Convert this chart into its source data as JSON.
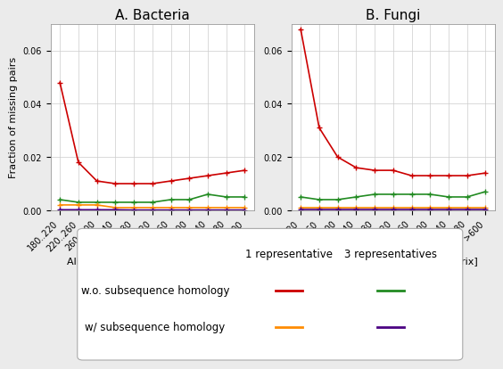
{
  "x_labels": [
    "180..220",
    "220..260",
    "260..300",
    "300..340",
    "340..380",
    "380..420",
    "420..460",
    "460..500",
    "500..540",
    "540..580",
    ">600"
  ],
  "bacteria": {
    "red": [
      0.048,
      0.018,
      0.011,
      0.01,
      0.01,
      0.01,
      0.011,
      0.012,
      0.013,
      0.014,
      0.015
    ],
    "green": [
      0.004,
      0.003,
      0.003,
      0.003,
      0.003,
      0.003,
      0.004,
      0.004,
      0.006,
      0.005,
      0.005
    ],
    "orange": [
      0.002,
      0.002,
      0.002,
      0.001,
      0.001,
      0.001,
      0.001,
      0.001,
      0.001,
      0.001,
      0.001
    ],
    "purple": [
      0.0002,
      0.0002,
      0.0002,
      0.0002,
      0.0001,
      0.0001,
      0.0001,
      0.0001,
      0.0001,
      0.0001,
      0.0001
    ]
  },
  "fungi": {
    "red": [
      0.068,
      0.031,
      0.02,
      0.016,
      0.015,
      0.015,
      0.013,
      0.013,
      0.013,
      0.013,
      0.014
    ],
    "green": [
      0.005,
      0.004,
      0.004,
      0.005,
      0.006,
      0.006,
      0.006,
      0.006,
      0.005,
      0.005,
      0.007
    ],
    "orange": [
      0.001,
      0.001,
      0.001,
      0.001,
      0.001,
      0.001,
      0.001,
      0.001,
      0.001,
      0.001,
      0.001
    ],
    "purple": [
      0.0002,
      0.0002,
      0.0002,
      0.0002,
      0.0002,
      0.0002,
      0.0002,
      0.0002,
      0.0002,
      0.0002,
      0.0002
    ]
  },
  "title_bacteria": "A. Bacteria",
  "title_fungi": "B. Fungi",
  "xlabel": "Alignment score [GCB 224 Matrix]",
  "ylabel": "Fraction of missing pairs",
  "ylim": [
    0,
    0.07
  ],
  "yticks": [
    0.0,
    0.02,
    0.04,
    0.06
  ],
  "colors": {
    "red": "#cc0000",
    "green": "#228b22",
    "orange": "#ff8c00",
    "purple": "#4b0082"
  },
  "marker": "+",
  "marker_size": 4,
  "line_width": 1.2,
  "background_color": "#ebebeb",
  "panel_bg": "#ffffff",
  "grid_color": "#cccccc",
  "title_fontsize": 11,
  "label_fontsize": 8,
  "tick_fontsize": 7
}
